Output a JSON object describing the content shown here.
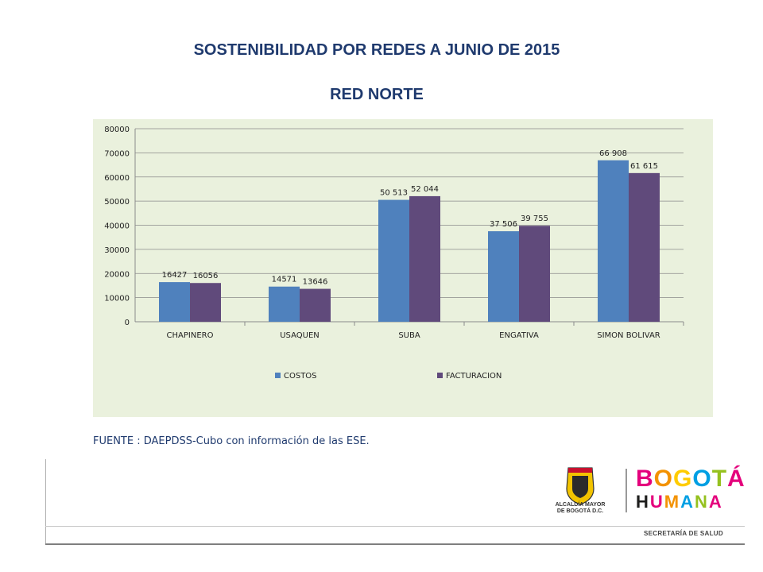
{
  "header": {
    "title": "SOSTENIBILIDAD POR REDES A JUNIO DE 2015",
    "subtitle": "RED NORTE"
  },
  "source_note": "FUENTE : DAEPDSS-Cubo con información de las ESE.",
  "chart_data": {
    "type": "bar",
    "categories": [
      "CHAPINERO",
      "USAQUEN",
      "SUBA",
      "ENGATIVA",
      "SIMON BOLIVAR"
    ],
    "series": [
      {
        "name": "COSTOS",
        "values": [
          16427,
          14571,
          50513,
          37506,
          66908
        ],
        "labels": [
          "16427",
          "14571",
          "50 513",
          "37 506",
          "66 908"
        ],
        "color": "#4f81bd"
      },
      {
        "name": "FACTURACION",
        "values": [
          16056,
          13646,
          52044,
          39755,
          61615
        ],
        "labels": [
          "16056",
          "13646",
          "52 044",
          "39 755",
          "61 615"
        ],
        "color": "#604a7b"
      }
    ],
    "ylim": [
      0,
      80000
    ],
    "yticks": [
      0,
      10000,
      20000,
      30000,
      40000,
      50000,
      60000,
      70000,
      80000
    ],
    "grid": true,
    "legend": "bottom",
    "background": "#eaf1dd"
  },
  "footer": {
    "alcaldia_line1": "ALCALDÍA MAYOR",
    "alcaldia_line2": "DE BOGOTÁ D.C.",
    "brand_top": "BOGOTÁ",
    "brand_bottom": "HUMANA",
    "department": "SECRETARÍA DE SALUD"
  }
}
